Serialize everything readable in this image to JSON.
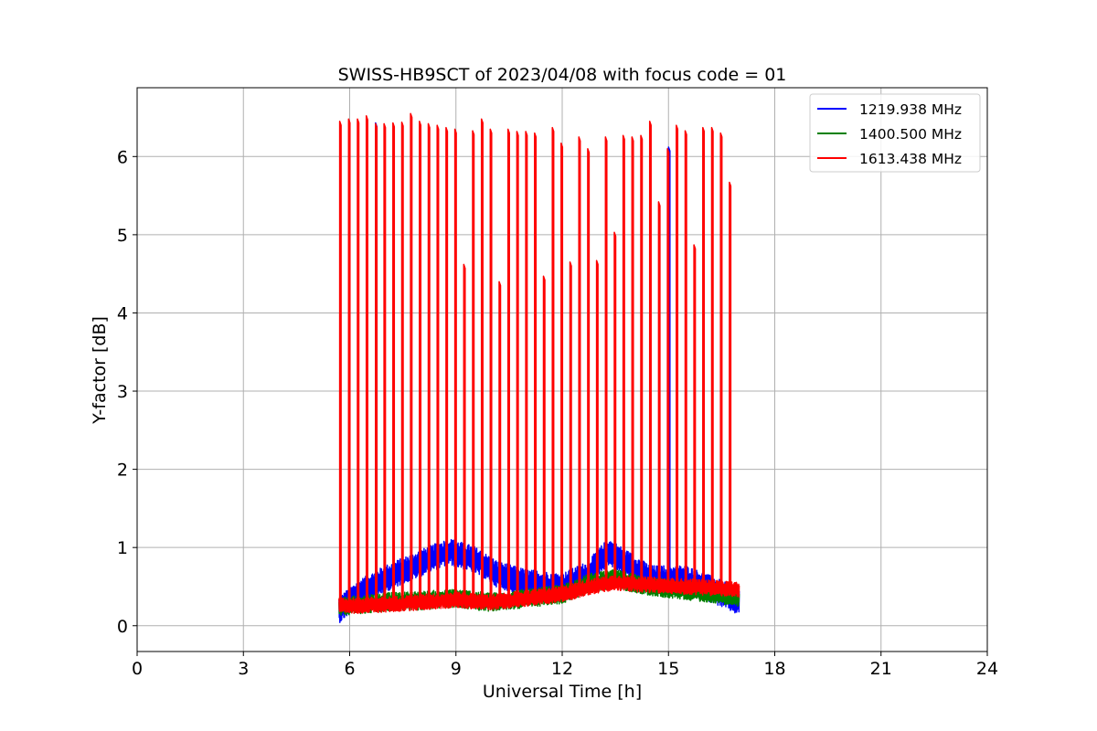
{
  "chart_data": {
    "type": "line",
    "title": "SWISS-HB9SCT of 2023/04/08 with focus code = 01",
    "xlabel": "Universal Time [h]",
    "ylabel": "Y-factor [dB]",
    "xlim": [
      0,
      24
    ],
    "ylim": [
      -0.33,
      6.88
    ],
    "xticks": [
      0,
      3,
      6,
      9,
      12,
      15,
      18,
      21,
      24
    ],
    "yticks": [
      0,
      1,
      2,
      3,
      4,
      5,
      6
    ],
    "grid": true,
    "legend_position": "top-right",
    "series": [
      {
        "name": "1219.938 MHz",
        "color": "#0000ff",
        "baseline": [
          [
            5.7,
            0.2
          ],
          [
            6.2,
            0.4
          ],
          [
            7.0,
            0.6
          ],
          [
            8.0,
            0.8
          ],
          [
            8.8,
            0.95
          ],
          [
            9.5,
            0.85
          ],
          [
            10.2,
            0.65
          ],
          [
            11.0,
            0.55
          ],
          [
            12.0,
            0.5
          ],
          [
            12.7,
            0.65
          ],
          [
            13.3,
            0.95
          ],
          [
            13.8,
            0.8
          ],
          [
            14.5,
            0.6
          ],
          [
            15.5,
            0.6
          ],
          [
            16.3,
            0.45
          ],
          [
            17.0,
            0.3
          ]
        ],
        "noise_amplitude": 0.17,
        "peaks": [
          [
            6.73,
            6.43
          ],
          [
            15.0,
            6.12
          ]
        ]
      },
      {
        "name": "1400.500 MHz",
        "color": "#008000",
        "baseline": [
          [
            5.7,
            0.25
          ],
          [
            7.0,
            0.3
          ],
          [
            8.0,
            0.32
          ],
          [
            9.0,
            0.35
          ],
          [
            10.0,
            0.3
          ],
          [
            11.0,
            0.35
          ],
          [
            12.0,
            0.4
          ],
          [
            12.8,
            0.55
          ],
          [
            13.5,
            0.6
          ],
          [
            14.5,
            0.5
          ],
          [
            15.5,
            0.45
          ],
          [
            16.5,
            0.4
          ],
          [
            17.0,
            0.35
          ]
        ],
        "noise_amplitude": 0.12,
        "peaks": []
      },
      {
        "name": "1613.438 MHz",
        "color": "#ff0000",
        "baseline": [
          [
            5.7,
            0.25
          ],
          [
            7.0,
            0.27
          ],
          [
            8.0,
            0.3
          ],
          [
            9.0,
            0.33
          ],
          [
            10.0,
            0.3
          ],
          [
            11.0,
            0.35
          ],
          [
            12.0,
            0.4
          ],
          [
            12.8,
            0.5
          ],
          [
            13.5,
            0.55
          ],
          [
            14.5,
            0.52
          ],
          [
            15.5,
            0.5
          ],
          [
            16.5,
            0.48
          ],
          [
            17.0,
            0.45
          ]
        ],
        "noise_amplitude": 0.1,
        "peaks": [
          [
            5.72,
            6.45
          ],
          [
            5.97,
            6.48
          ],
          [
            6.22,
            6.48
          ],
          [
            6.47,
            6.52
          ],
          [
            6.73,
            6.42
          ],
          [
            6.97,
            6.42
          ],
          [
            7.22,
            6.43
          ],
          [
            7.47,
            6.44
          ],
          [
            7.72,
            6.55
          ],
          [
            7.97,
            6.45
          ],
          [
            8.22,
            6.42
          ],
          [
            8.47,
            6.4
          ],
          [
            8.72,
            6.37
          ],
          [
            8.97,
            6.35
          ],
          [
            9.22,
            4.62
          ],
          [
            9.47,
            6.33
          ],
          [
            9.72,
            6.48
          ],
          [
            9.97,
            6.35
          ],
          [
            10.22,
            4.4
          ],
          [
            10.47,
            6.35
          ],
          [
            10.72,
            6.32
          ],
          [
            10.97,
            6.32
          ],
          [
            11.22,
            6.3
          ],
          [
            11.47,
            4.47
          ],
          [
            11.72,
            6.37
          ],
          [
            11.97,
            6.17
          ],
          [
            12.22,
            4.65
          ],
          [
            12.47,
            6.25
          ],
          [
            12.72,
            6.1
          ],
          [
            12.97,
            4.67
          ],
          [
            13.22,
            6.25
          ],
          [
            13.47,
            5.03
          ],
          [
            13.72,
            6.27
          ],
          [
            13.97,
            6.25
          ],
          [
            14.22,
            6.27
          ],
          [
            14.47,
            6.45
          ],
          [
            14.72,
            5.42
          ],
          [
            14.97,
            6.1
          ],
          [
            15.22,
            6.4
          ],
          [
            15.47,
            6.33
          ],
          [
            15.72,
            4.87
          ],
          [
            15.97,
            6.37
          ],
          [
            16.22,
            6.37
          ],
          [
            16.47,
            6.3
          ],
          [
            16.72,
            5.67
          ]
        ]
      }
    ]
  }
}
